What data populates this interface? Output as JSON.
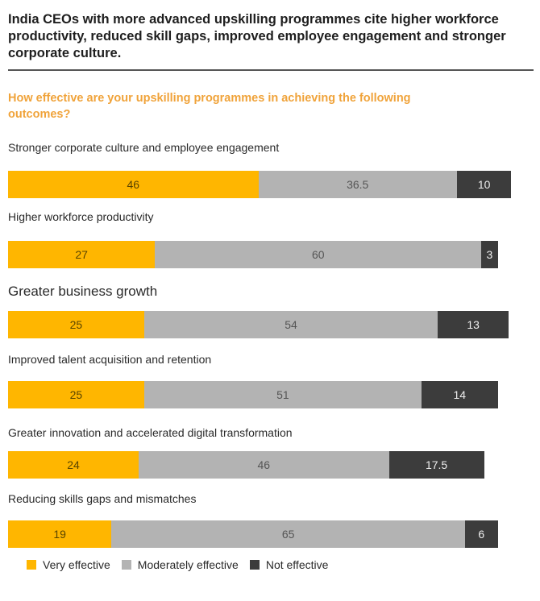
{
  "chart_data": {
    "type": "bar",
    "orientation": "horizontal-stacked",
    "title": "India CEOs with more advanced upskilling programmes cite higher workforce productivity, reduced skill gaps, improved employee engagement and stronger corporate culture.",
    "subtitle": "How effective are your upskilling programmes in achieving the following outcomes?",
    "categories": [
      "Stronger corporate culture and employee engagement",
      "Higher workforce productivity",
      "Greater business growth",
      "Improved talent acquisition and retention",
      "Greater innovation and accelerated digital transformation",
      "Reducing skills gaps and mismatches"
    ],
    "series": [
      {
        "name": "Very effective",
        "color": "#ffb600",
        "values": [
          46,
          27,
          25,
          25,
          24,
          19
        ],
        "labels": [
          "46",
          "27",
          "25",
          "25",
          "24",
          "19"
        ]
      },
      {
        "name": "Moderately effective",
        "color": "#b3b3b3",
        "values": [
          36.5,
          60,
          54,
          51,
          46,
          65
        ],
        "labels": [
          "36.5",
          "60",
          "54",
          "51",
          "46",
          "65"
        ]
      },
      {
        "name": "Not effective",
        "color": "#3c3c3c",
        "values": [
          10,
          3,
          13,
          14,
          17.5,
          6
        ],
        "labels": [
          "10",
          "3",
          "13",
          "14",
          "17.5",
          "6"
        ]
      }
    ],
    "legend_position": "bottom-left",
    "grid": false
  }
}
